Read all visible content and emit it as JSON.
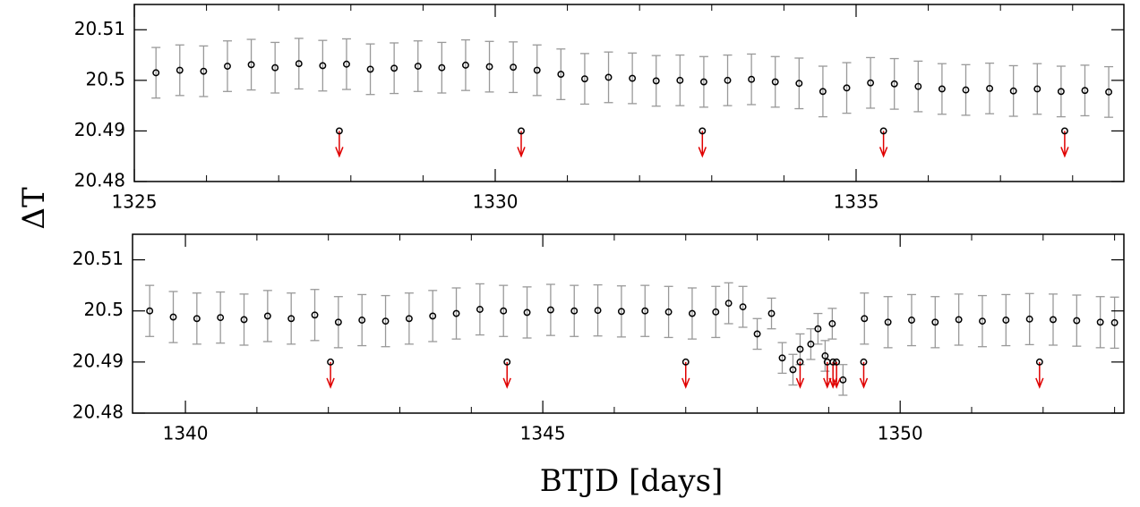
{
  "chart_data": [
    {
      "type": "scatter",
      "ylabel": "ΔT",
      "xlim": [
        1325,
        1338.71
      ],
      "ylim": [
        20.48,
        20.515
      ],
      "xticks": [
        1325,
        1330,
        1335
      ],
      "xminorticks": [
        1326,
        1327,
        1328,
        1329,
        1331,
        1332,
        1333,
        1334,
        1336,
        1337,
        1338
      ],
      "yticks": [
        20.48,
        20.49,
        20.5,
        20.51
      ],
      "point_color": "#000000",
      "error_color": "#999999",
      "limit_color": "#e00000",
      "x": [
        1325.3,
        1325.63,
        1325.96,
        1326.29,
        1326.62,
        1326.95,
        1327.28,
        1327.61,
        1327.94,
        1328.27,
        1328.6,
        1328.93,
        1329.26,
        1329.59,
        1329.92,
        1330.25,
        1330.58,
        1330.91,
        1331.24,
        1331.57,
        1331.9,
        1332.23,
        1332.56,
        1332.89,
        1333.22,
        1333.55,
        1333.88,
        1334.21,
        1334.54,
        1334.87,
        1335.2,
        1335.53,
        1335.86,
        1336.19,
        1336.52,
        1336.85,
        1337.18,
        1337.51,
        1337.84,
        1338.17,
        1338.5
      ],
      "values": [
        20.5015,
        20.502,
        20.5018,
        20.5028,
        20.5031,
        20.5025,
        20.5033,
        20.5029,
        20.5032,
        20.5022,
        20.5024,
        20.5028,
        20.5025,
        20.503,
        20.5027,
        20.5026,
        20.502,
        20.5012,
        20.5003,
        20.5006,
        20.5004,
        20.4999,
        20.5,
        20.4997,
        20.5,
        20.5002,
        20.4997,
        20.4994,
        20.4978,
        20.4985,
        20.4995,
        20.4993,
        20.4988,
        20.4983,
        20.4981,
        20.4984,
        20.4979,
        20.4983,
        20.4978,
        20.498,
        20.4977
      ],
      "errors": [
        0.005,
        0.005,
        0.005,
        0.005,
        0.005,
        0.005,
        0.005,
        0.005,
        0.005,
        0.005,
        0.005,
        0.005,
        0.005,
        0.005,
        0.005,
        0.005,
        0.005,
        0.005,
        0.005,
        0.005,
        0.005,
        0.005,
        0.005,
        0.005,
        0.005,
        0.005,
        0.005,
        0.005,
        0.005,
        0.005,
        0.005,
        0.005,
        0.005,
        0.005,
        0.005,
        0.005,
        0.005,
        0.005,
        0.005,
        0.005,
        0.005
      ],
      "upper_limits": {
        "x": [
          1327.84,
          1330.36,
          1332.87,
          1335.38,
          1337.89
        ],
        "values": [
          20.49,
          20.49,
          20.49,
          20.49,
          20.49
        ]
      }
    },
    {
      "type": "scatter",
      "xlabel": "BTJD [days]",
      "xlim": [
        1339.26,
        1353.13
      ],
      "ylim": [
        20.48,
        20.515
      ],
      "xticks": [
        1340,
        1345,
        1350
      ],
      "xminorticks": [
        1341,
        1342,
        1343,
        1344,
        1346,
        1347,
        1348,
        1349,
        1351,
        1352,
        1353
      ],
      "yticks": [
        20.48,
        20.49,
        20.5,
        20.51
      ],
      "point_color": "#000000",
      "error_color": "#999999",
      "limit_color": "#e00000",
      "x": [
        1339.5,
        1339.83,
        1340.16,
        1340.49,
        1340.82,
        1341.15,
        1341.48,
        1341.81,
        1342.14,
        1342.47,
        1342.8,
        1343.13,
        1343.46,
        1343.79,
        1344.12,
        1344.45,
        1344.78,
        1345.11,
        1345.44,
        1345.77,
        1346.1,
        1346.43,
        1346.76,
        1347.09,
        1347.42,
        1347.6,
        1347.8,
        1348.0,
        1348.2,
        1348.35,
        1348.5,
        1348.6,
        1348.75,
        1348.85,
        1348.95,
        1349.05,
        1349.2,
        1349.5,
        1349.83,
        1350.16,
        1350.49,
        1350.82,
        1351.15,
        1351.48,
        1351.81,
        1352.14,
        1352.47,
        1352.8,
        1353.0
      ],
      "values": [
        20.5,
        20.4988,
        20.4985,
        20.4987,
        20.4983,
        20.499,
        20.4985,
        20.4992,
        20.4978,
        20.4982,
        20.498,
        20.4985,
        20.499,
        20.4995,
        20.5003,
        20.5,
        20.4997,
        20.5002,
        20.5,
        20.5001,
        20.4999,
        20.5,
        20.4998,
        20.4995,
        20.4998,
        20.5015,
        20.5008,
        20.4955,
        20.4995,
        20.4908,
        20.4885,
        20.4925,
        20.4935,
        20.4965,
        20.4912,
        20.4975,
        20.4865,
        20.4985,
        20.4978,
        20.4982,
        20.4978,
        20.4983,
        20.498,
        20.4982,
        20.4984,
        20.4983,
        20.4981,
        20.4978,
        20.4977
      ],
      "errors": [
        0.005,
        0.005,
        0.005,
        0.005,
        0.005,
        0.005,
        0.005,
        0.005,
        0.005,
        0.005,
        0.005,
        0.005,
        0.005,
        0.005,
        0.005,
        0.005,
        0.005,
        0.005,
        0.005,
        0.005,
        0.005,
        0.005,
        0.005,
        0.005,
        0.005,
        0.004,
        0.004,
        0.003,
        0.003,
        0.003,
        0.003,
        0.003,
        0.003,
        0.003,
        0.003,
        0.003,
        0.003,
        0.005,
        0.005,
        0.005,
        0.005,
        0.005,
        0.005,
        0.005,
        0.005,
        0.005,
        0.005,
        0.005,
        0.005
      ],
      "upper_limits": {
        "x": [
          1342.03,
          1344.5,
          1347.0,
          1348.6,
          1348.98,
          1349.06,
          1349.11,
          1349.49,
          1351.95
        ],
        "values": [
          20.49,
          20.49,
          20.49,
          20.49,
          20.49,
          20.49,
          20.49,
          20.49,
          20.49
        ]
      }
    }
  ]
}
